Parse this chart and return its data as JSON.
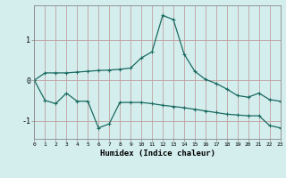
{
  "xlabel": "Humidex (Indice chaleur)",
  "background_color": "#d4eeee",
  "grid_color": "#c0a0a0",
  "line_color": "#1a6a60",
  "y_upper": [
    0.0,
    0.18,
    0.18,
    0.18,
    0.2,
    0.22,
    0.24,
    0.25,
    0.27,
    0.3,
    0.55,
    0.7,
    1.6,
    1.5,
    0.65,
    0.22,
    0.02,
    -0.08,
    -0.22,
    -0.38,
    -0.42,
    -0.32,
    -0.48,
    -0.52
  ],
  "y_lower": [
    0.0,
    -0.5,
    -0.58,
    -0.32,
    -0.52,
    -0.52,
    -1.18,
    -1.08,
    -0.55,
    -0.55,
    -0.55,
    -0.58,
    -0.62,
    -0.65,
    -0.68,
    -0.72,
    -0.76,
    -0.8,
    -0.84,
    -0.86,
    -0.88,
    -0.88,
    -1.12,
    -1.18
  ],
  "yticks": [
    -1,
    0,
    1
  ],
  "ylim": [
    -1.45,
    1.85
  ],
  "xlim": [
    0,
    23
  ],
  "xtick_labels": [
    "0",
    "1",
    "2",
    "3",
    "4",
    "5",
    "6",
    "7",
    "8",
    "9",
    "10",
    "11",
    "12",
    "13",
    "14",
    "15",
    "16",
    "17",
    "18",
    "19",
    "20",
    "21",
    "22",
    "23"
  ]
}
